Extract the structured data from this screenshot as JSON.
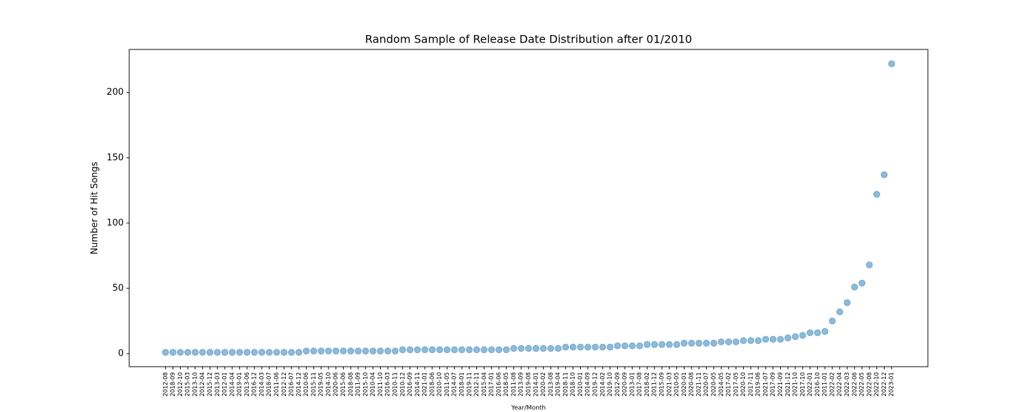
{
  "chart_data": {
    "type": "scatter",
    "title": "Random Sample of Release Date Distribution after 01/2010",
    "x_label": "Year/Month",
    "y_label": "Number of Hit Songs",
    "categories": [
      "2012-08",
      "2018-09",
      "2012-10",
      "2015-03",
      "2013-10",
      "2012-04",
      "2015-12",
      "2013-03",
      "2012-01",
      "2014-04",
      "2019-01",
      "2013-06",
      "2016-12",
      "2014-03",
      "2018-07",
      "2011-06",
      "2012-12",
      "2016-07",
      "2014-12",
      "2010-06",
      "2015-11",
      "2019-05",
      "2014-10",
      "2020-06",
      "2015-06",
      "2018-08",
      "2011-09",
      "2015-10",
      "2010-04",
      "2011-10",
      "2016-03",
      "2010-11",
      "2010-12",
      "2016-09",
      "2014-11",
      "2021-01",
      "2018-06",
      "2010-10",
      "2011-05",
      "2014-07",
      "2018-01",
      "2019-11",
      "2012-11",
      "2015-04",
      "2017-01",
      "2016-06",
      "2018-05",
      "2011-08",
      "2013-09",
      "2019-08",
      "2014-01",
      "2020-02",
      "2013-08",
      "2019-04",
      "2018-11",
      "2018-10",
      "2010-01",
      "2014-09",
      "2019-12",
      "2014-02",
      "2019-10",
      "2012-09",
      "2020-09",
      "2013-01",
      "2017-08",
      "2018-02",
      "2011-12",
      "2015-09",
      "2021-03",
      "2010-05",
      "2020-01",
      "2020-08",
      "2021-11",
      "2020-07",
      "2020-05",
      "2014-05",
      "2017-02",
      "2017-05",
      "2020-10",
      "2017-11",
      "2019-06",
      "2021-07",
      "2017-09",
      "2021-09",
      "2021-12",
      "2021-10",
      "2017-10",
      "2022-01",
      "2016-10",
      "2011-01",
      "2022-02",
      "2022-04",
      "2022-03",
      "2022-06",
      "2022-05",
      "2022-08",
      "2022-10",
      "2022-12",
      "2023-01"
    ],
    "values": [
      1,
      1,
      1,
      1,
      1,
      1,
      1,
      1,
      1,
      1,
      1,
      1,
      1,
      1,
      1,
      1,
      1,
      1,
      1,
      2,
      2,
      2,
      2,
      2,
      2,
      2,
      2,
      2,
      2,
      2,
      2,
      2,
      3,
      3,
      3,
      3,
      3,
      3,
      3,
      3,
      3,
      3,
      3,
      3,
      3,
      3,
      3,
      4,
      4,
      4,
      4,
      4,
      4,
      4,
      5,
      5,
      5,
      5,
      5,
      5,
      5,
      6,
      6,
      6,
      6,
      7,
      7,
      7,
      7,
      7,
      8,
      8,
      8,
      8,
      8,
      9,
      9,
      9,
      10,
      10,
      10,
      11,
      11,
      11,
      12,
      13,
      14,
      16,
      16,
      17,
      25,
      32,
      39,
      51,
      54,
      68,
      122,
      137,
      222
    ],
    "color": "#1f77b4",
    "ylim": [
      -10,
      233
    ],
    "yticks": [
      0,
      50,
      100,
      150,
      200
    ]
  }
}
